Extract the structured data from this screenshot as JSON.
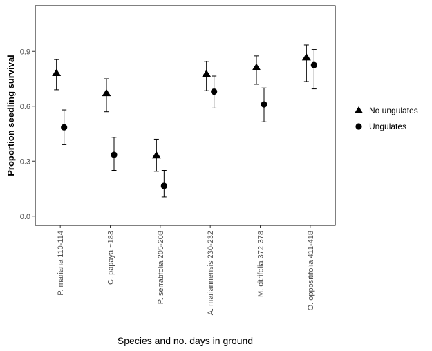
{
  "chart_data": {
    "type": "scatter",
    "xlabel": "Species and no. days in ground",
    "ylabel": "Proportion seedling survival",
    "ylim": [
      -0.05,
      1.15
    ],
    "yticks": [
      0.0,
      0.3,
      0.6,
      0.9
    ],
    "ytick_labels": [
      "0.0",
      "0.3",
      "0.6",
      "0.9"
    ],
    "categories": [
      "P. mariana 110-114",
      "C. papaya ~183",
      "P. serratifolia 205-208",
      "A. mariannensis 230-232",
      "M. citrifolia 372-378",
      "O. oppositifolia 411-418"
    ],
    "grid": false,
    "legend_position": "right",
    "series": [
      {
        "name": "No ungulates",
        "marker": "triangle",
        "color": "#000000",
        "values": [
          0.78,
          0.67,
          0.33,
          0.775,
          0.81,
          0.865
        ],
        "lower": [
          0.69,
          0.57,
          0.245,
          0.685,
          0.72,
          0.735
        ],
        "upper": [
          0.855,
          0.75,
          0.42,
          0.845,
          0.875,
          0.935
        ]
      },
      {
        "name": "Ungulates",
        "marker": "circle",
        "color": "#000000",
        "values": [
          0.485,
          0.335,
          0.165,
          0.68,
          0.61,
          0.825
        ],
        "lower": [
          0.39,
          0.25,
          0.105,
          0.59,
          0.515,
          0.695
        ],
        "upper": [
          0.58,
          0.43,
          0.25,
          0.765,
          0.7,
          0.91
        ]
      }
    ]
  }
}
